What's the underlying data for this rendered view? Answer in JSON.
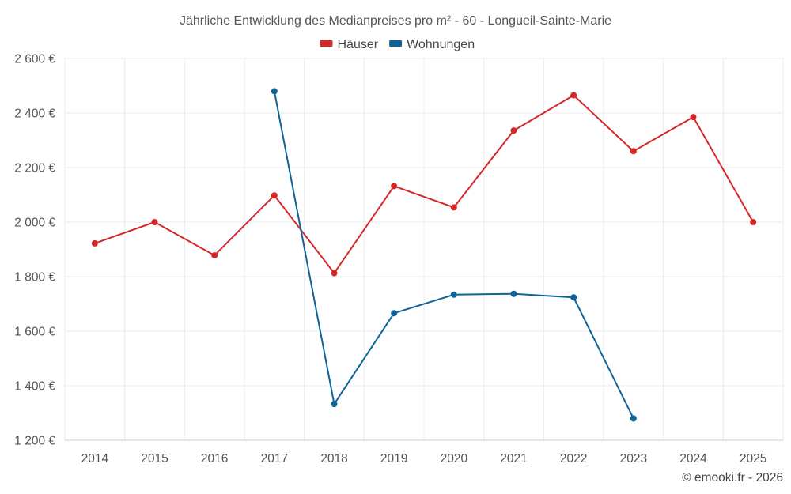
{
  "chart_data": {
    "type": "line",
    "title": "Jährliche Entwicklung des Medianpreises pro m² - 60 - Longueil-Sainte-Marie",
    "categories": [
      "2014",
      "2015",
      "2016",
      "2017",
      "2018",
      "2019",
      "2020",
      "2021",
      "2022",
      "2023",
      "2024",
      "2025"
    ],
    "series": [
      {
        "name": "Häuser",
        "color": "#d62728",
        "values": [
          1922,
          2000,
          1878,
          2098,
          1813,
          2132,
          2054,
          2336,
          2465,
          2260,
          2385,
          2000
        ]
      },
      {
        "name": "Wohnungen",
        "color": "#0e6496",
        "values": [
          null,
          null,
          null,
          2480,
          1333,
          1666,
          1734,
          1737,
          1724,
          1280,
          null,
          null
        ]
      }
    ],
    "ylim": [
      1200,
      2600
    ],
    "yticks": [
      1200,
      1400,
      1600,
      1800,
      2000,
      2200,
      2400,
      2600
    ],
    "ytick_labels": [
      "1 200 €",
      "1 400 €",
      "1 600 €",
      "1 800 €",
      "2 000 €",
      "2 200 €",
      "2 400 €",
      "2 600 €"
    ],
    "xlabel": "",
    "ylabel": "",
    "legend_position": "top-center",
    "grid": true
  },
  "credit": "© emooki.fr - 2026"
}
